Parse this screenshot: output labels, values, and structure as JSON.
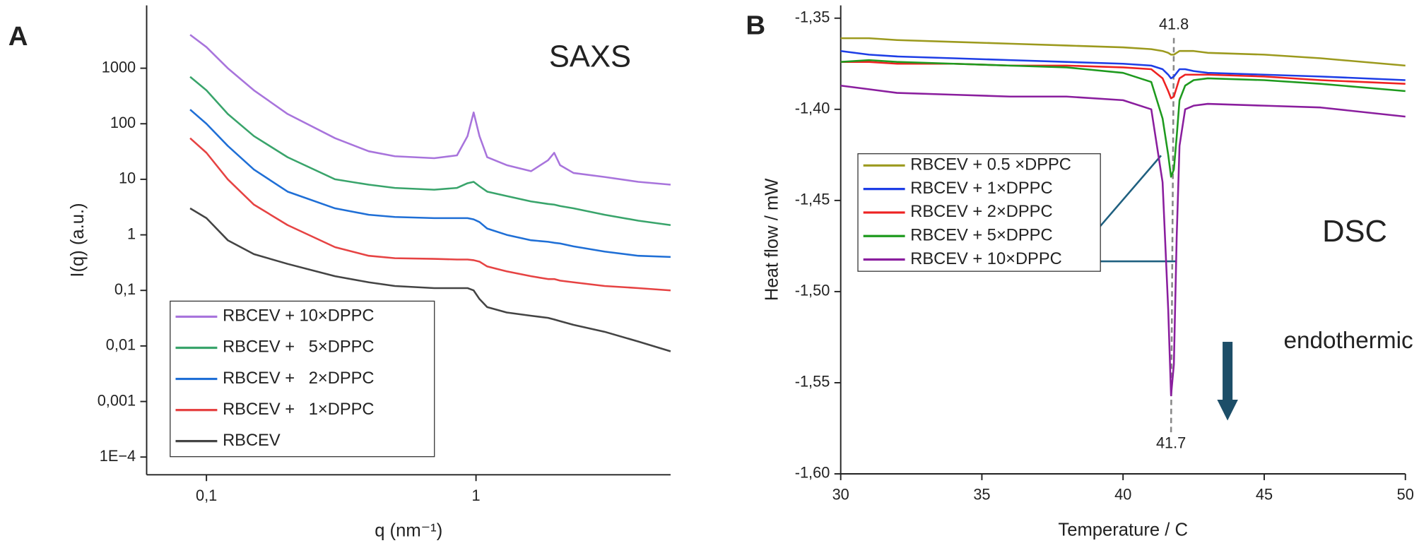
{
  "chart_data": [
    {
      "type": "line",
      "panel": "A",
      "annotations": [
        "SAXS"
      ],
      "xlabel": "q (nm⁻¹)",
      "ylabel": "I(q) (a.u.)",
      "xscale": "log",
      "yscale": "log",
      "legend": "lower left",
      "xlim": [
        0.06,
        5.27
      ],
      "ylim": [
        4.8e-05,
        13500
      ],
      "xticks": [
        {
          "value": 0.1,
          "label": "0,1"
        },
        1
      ],
      "yticks": [
        {
          "value": 0.0001,
          "label": "1E−4"
        },
        {
          "value": 0.001,
          "label": "0,001"
        },
        {
          "value": 0.01,
          "label": "0,01"
        },
        {
          "value": 0.1,
          "label": "0,1"
        },
        1,
        10,
        100,
        1000
      ],
      "x": [
        0.087,
        0.1,
        0.12,
        0.15,
        0.2,
        0.3,
        0.4,
        0.5,
        0.7,
        0.85,
        0.93,
        0.98,
        1.03,
        1.1,
        1.3,
        1.6,
        1.85,
        1.95,
        2.05,
        2.3,
        3,
        4,
        5.27
      ],
      "series": [
        {
          "name": "RBCEV + 10×DPPC",
          "color": "#a874dc",
          "values": [
            4000,
            2400,
            1000,
            400,
            150,
            55,
            32,
            26,
            24,
            27,
            60,
            160,
            60,
            25,
            18,
            14,
            22,
            30,
            18,
            13,
            11,
            9,
            8
          ]
        },
        {
          "name": "RBCEV +   5×DPPC",
          "color": "#39a46b",
          "values": [
            700,
            400,
            150,
            60,
            25,
            10,
            8,
            7,
            6.5,
            7,
            8.5,
            9,
            7.5,
            6,
            5,
            4,
            3.6,
            3.5,
            3.3,
            3,
            2.3,
            1.8,
            1.5
          ]
        },
        {
          "name": "RBCEV +   2×DPPC",
          "color": "#1f6fd6",
          "values": [
            180,
            100,
            40,
            15,
            6,
            3,
            2.3,
            2.1,
            2,
            2,
            2,
            1.9,
            1.7,
            1.3,
            1,
            0.8,
            0.75,
            0.72,
            0.7,
            0.62,
            0.5,
            0.42,
            0.4
          ]
        },
        {
          "name": "RBCEV +   1×DPPC",
          "color": "#e64343",
          "values": [
            55,
            30,
            10,
            3.5,
            1.5,
            0.6,
            0.42,
            0.38,
            0.37,
            0.36,
            0.36,
            0.35,
            0.33,
            0.27,
            0.22,
            0.18,
            0.16,
            0.16,
            0.15,
            0.14,
            0.12,
            0.11,
            0.1
          ]
        },
        {
          "name": "RBCEV",
          "color": "#444444",
          "values": [
            3,
            2,
            0.8,
            0.45,
            0.3,
            0.18,
            0.14,
            0.12,
            0.11,
            0.11,
            0.11,
            0.1,
            0.07,
            0.05,
            0.04,
            0.035,
            0.032,
            0.03,
            0.028,
            0.024,
            0.018,
            0.012,
            0.008
          ]
        }
      ]
    },
    {
      "type": "line",
      "panel": "B",
      "annotations": [
        "DSC",
        "endothermic"
      ],
      "peak_labels": [
        {
          "text": "41.8",
          "x": 41.8
        },
        {
          "text": "41.7",
          "x": 41.7
        }
      ],
      "xlabel": "Temperature / C",
      "ylabel": "Heat flow / mW",
      "legend": "center left",
      "xlim": [
        30,
        50
      ],
      "ylim": [
        -1.6,
        -1.343
      ],
      "xticks": [
        30,
        35,
        40,
        45,
        50
      ],
      "yticks": [
        {
          "value": -1.6,
          "label": "-1,60"
        },
        {
          "value": -1.55,
          "label": "-1,55"
        },
        {
          "value": -1.5,
          "label": "-1,50"
        },
        {
          "value": -1.45,
          "label": "-1,45"
        },
        {
          "value": -1.4,
          "label": "-1,40"
        },
        {
          "value": -1.35,
          "label": "-1,35"
        }
      ],
      "x": [
        30,
        31,
        32,
        34,
        36,
        38,
        40,
        41,
        41.4,
        41.6,
        41.7,
        41.8,
        41.9,
        42,
        42.2,
        42.5,
        43,
        45,
        47,
        50
      ],
      "series": [
        {
          "name": "RBCEV + 0.5 ×DPPC",
          "color": "#9c9a1e",
          "values": [
            -1.361,
            -1.361,
            -1.362,
            -1.363,
            -1.364,
            -1.365,
            -1.366,
            -1.367,
            -1.368,
            -1.369,
            -1.37,
            -1.37,
            -1.369,
            -1.368,
            -1.368,
            -1.368,
            -1.369,
            -1.37,
            -1.372,
            -1.376
          ]
        },
        {
          "name": "RBCEV + 1×DPPC",
          "color": "#1e3ee6",
          "values": [
            -1.368,
            -1.37,
            -1.371,
            -1.372,
            -1.373,
            -1.374,
            -1.375,
            -1.376,
            -1.378,
            -1.381,
            -1.383,
            -1.382,
            -1.38,
            -1.378,
            -1.378,
            -1.379,
            -1.38,
            -1.381,
            -1.382,
            -1.384
          ]
        },
        {
          "name": "RBCEV + 2×DPPC",
          "color": "#ee2222",
          "values": [
            -1.374,
            -1.374,
            -1.375,
            -1.375,
            -1.376,
            -1.376,
            -1.377,
            -1.378,
            -1.383,
            -1.39,
            -1.394,
            -1.393,
            -1.388,
            -1.383,
            -1.381,
            -1.381,
            -1.381,
            -1.382,
            -1.384,
            -1.386
          ]
        },
        {
          "name": "RBCEV + 5×DPPC",
          "color": "#1e9a1e",
          "values": [
            -1.374,
            -1.373,
            -1.374,
            -1.375,
            -1.376,
            -1.377,
            -1.38,
            -1.385,
            -1.405,
            -1.425,
            -1.437,
            -1.433,
            -1.415,
            -1.395,
            -1.387,
            -1.384,
            -1.383,
            -1.384,
            -1.386,
            -1.39
          ]
        },
        {
          "name": "RBCEV + 10×DPPC",
          "color": "#8a1e9e",
          "values": [
            -1.387,
            -1.389,
            -1.391,
            -1.392,
            -1.393,
            -1.393,
            -1.395,
            -1.4,
            -1.44,
            -1.51,
            -1.557,
            -1.54,
            -1.47,
            -1.42,
            -1.4,
            -1.398,
            -1.397,
            -1.398,
            -1.399,
            -1.404
          ]
        }
      ]
    }
  ]
}
